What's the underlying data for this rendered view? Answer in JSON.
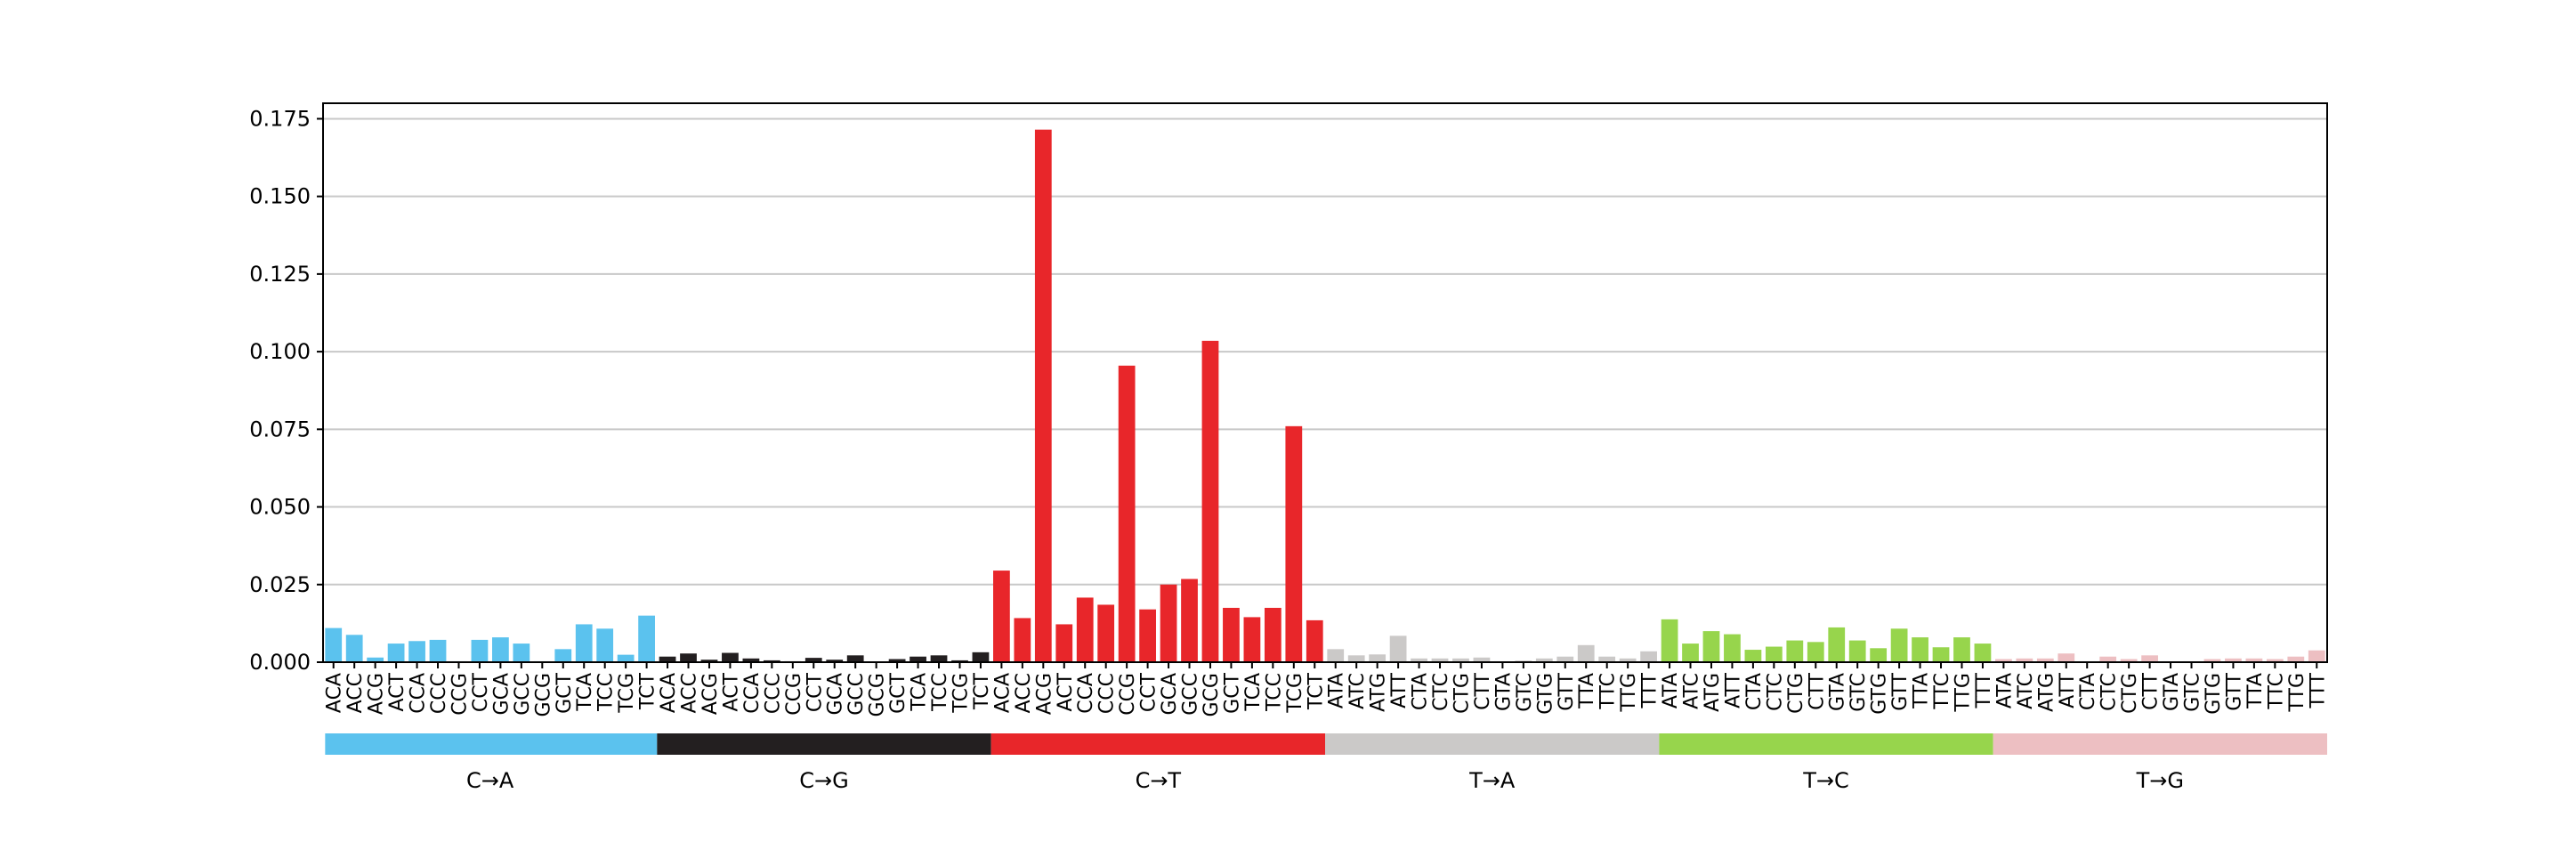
{
  "chart_data": {
    "type": "bar",
    "ylim": [
      0,
      0.18
    ],
    "yticks": [
      "0.000",
      "0.025",
      "0.050",
      "0.075",
      "0.100",
      "0.125",
      "0.150",
      "0.175"
    ],
    "grid": "horizontal",
    "groups": [
      {
        "name": "C→A",
        "color": "#5BC2EE",
        "categories": [
          "ACA",
          "ACC",
          "ACG",
          "ACT",
          "CCA",
          "CCC",
          "CCG",
          "CCT",
          "GCA",
          "GCC",
          "GCG",
          "GCT",
          "TCA",
          "TCC",
          "TCG",
          "TCT"
        ],
        "values": [
          0.011,
          0.0088,
          0.0015,
          0.006,
          0.0068,
          0.0072,
          0.0003,
          0.0072,
          0.008,
          0.006,
          0.0003,
          0.0042,
          0.0122,
          0.0108,
          0.0024,
          0.015
        ]
      },
      {
        "name": "C→G",
        "color": "#231F20",
        "categories": [
          "ACA",
          "ACC",
          "ACG",
          "ACT",
          "CCA",
          "CCC",
          "CCG",
          "CCT",
          "GCA",
          "GCC",
          "GCG",
          "GCT",
          "TCA",
          "TCC",
          "TCG",
          "TCT"
        ],
        "values": [
          0.0018,
          0.0028,
          0.0008,
          0.003,
          0.0012,
          0.0006,
          0.0003,
          0.0014,
          0.0008,
          0.0022,
          0.0002,
          0.001,
          0.0018,
          0.0022,
          0.0006,
          0.0032
        ]
      },
      {
        "name": "C→T",
        "color": "#E8262A",
        "categories": [
          "ACA",
          "ACC",
          "ACG",
          "ACT",
          "CCA",
          "CCC",
          "CCG",
          "CCT",
          "GCA",
          "GCC",
          "GCG",
          "GCT",
          "TCA",
          "TCC",
          "TCG",
          "TCT"
        ],
        "values": [
          0.0295,
          0.0142,
          0.1715,
          0.0122,
          0.0208,
          0.0185,
          0.0955,
          0.017,
          0.025,
          0.0268,
          0.1035,
          0.0175,
          0.0145,
          0.0175,
          0.076,
          0.0135
        ]
      },
      {
        "name": "T→A",
        "color": "#CBC9C8",
        "categories": [
          "ATA",
          "ATC",
          "ATG",
          "ATT",
          "CTA",
          "CTC",
          "CTG",
          "CTT",
          "GTA",
          "GTC",
          "GTG",
          "GTT",
          "TTA",
          "TTC",
          "TTG",
          "TTT"
        ],
        "values": [
          0.0042,
          0.0022,
          0.0025,
          0.0085,
          0.0012,
          0.0012,
          0.0012,
          0.0015,
          0.0003,
          0.0005,
          0.0012,
          0.0018,
          0.0055,
          0.0018,
          0.0012,
          0.0035
        ]
      },
      {
        "name": "T→C",
        "color": "#97D54C",
        "categories": [
          "ATA",
          "ATC",
          "ATG",
          "ATT",
          "CTA",
          "CTC",
          "CTG",
          "CTT",
          "GTA",
          "GTC",
          "GTG",
          "GTT",
          "TTA",
          "TTC",
          "TTG",
          "TTT"
        ],
        "values": [
          0.0138,
          0.006,
          0.01,
          0.009,
          0.004,
          0.005,
          0.007,
          0.0065,
          0.0112,
          0.007,
          0.0045,
          0.0108,
          0.008,
          0.0048,
          0.008,
          0.006
        ]
      },
      {
        "name": "T→G",
        "color": "#EDBFC2",
        "categories": [
          "ATA",
          "ATC",
          "ATG",
          "ATT",
          "CTA",
          "CTC",
          "CTG",
          "CTT",
          "GTA",
          "GTC",
          "GTG",
          "GTT",
          "TTA",
          "TTC",
          "TTG",
          "TTT"
        ],
        "values": [
          0.001,
          0.0012,
          0.0012,
          0.0028,
          0.0003,
          0.0018,
          0.001,
          0.0022,
          0.0003,
          0.0003,
          0.001,
          0.0012,
          0.0012,
          0.001,
          0.0018,
          0.0038
        ]
      }
    ]
  }
}
